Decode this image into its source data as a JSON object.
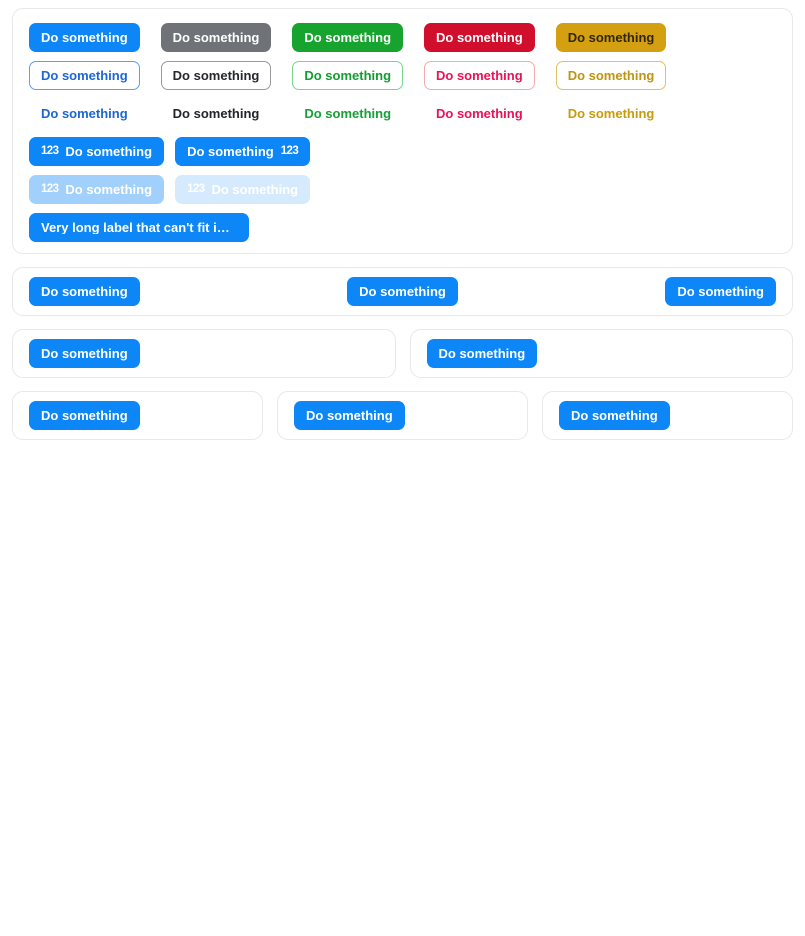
{
  "colors": {
    "primary_blue": "#0d86f8",
    "gray": "#6f7276",
    "green": "#17a42e",
    "red": "#d10e2b",
    "yellow": "#d4a011",
    "card_border": "#e7e8ec"
  },
  "icons": {
    "numbers": "123"
  },
  "variants_card": {
    "solid": [
      {
        "color": "blue",
        "label": "Do something"
      },
      {
        "color": "gray",
        "label": "Do something"
      },
      {
        "color": "green",
        "label": "Do something"
      },
      {
        "color": "red",
        "label": "Do something"
      },
      {
        "color": "yellow",
        "label": "Do something"
      }
    ],
    "outline": [
      {
        "color": "blue",
        "label": "Do something"
      },
      {
        "color": "gray",
        "label": "Do something"
      },
      {
        "color": "green",
        "label": "Do something"
      },
      {
        "color": "red",
        "label": "Do something"
      },
      {
        "color": "yellow",
        "label": "Do something"
      }
    ],
    "text": [
      {
        "color": "blue",
        "label": "Do something"
      },
      {
        "color": "gray",
        "label": "Do something"
      },
      {
        "color": "green",
        "label": "Do something"
      },
      {
        "color": "red",
        "label": "Do something"
      },
      {
        "color": "yellow",
        "label": "Do something"
      }
    ],
    "icon_buttons": [
      {
        "icon": "123",
        "label": "Do something",
        "icon_position": "leading"
      },
      {
        "icon": "123",
        "label": "Do something",
        "icon_position": "trailing"
      }
    ],
    "faded_buttons": [
      {
        "icon": "123",
        "label": "Do something"
      },
      {
        "icon": "123",
        "label": "Do something"
      }
    ],
    "overflow_button": {
      "label": "Very long label that can't fit in …"
    }
  },
  "toolbar_card": {
    "left_button": "Do something",
    "center_button": "Do something",
    "right_button": "Do something"
  },
  "half_cards": [
    {
      "button": "Do something"
    },
    {
      "button": "Do something"
    }
  ],
  "third_cards": [
    {
      "button": "Do something"
    },
    {
      "button": "Do something"
    },
    {
      "button": "Do something"
    }
  ]
}
